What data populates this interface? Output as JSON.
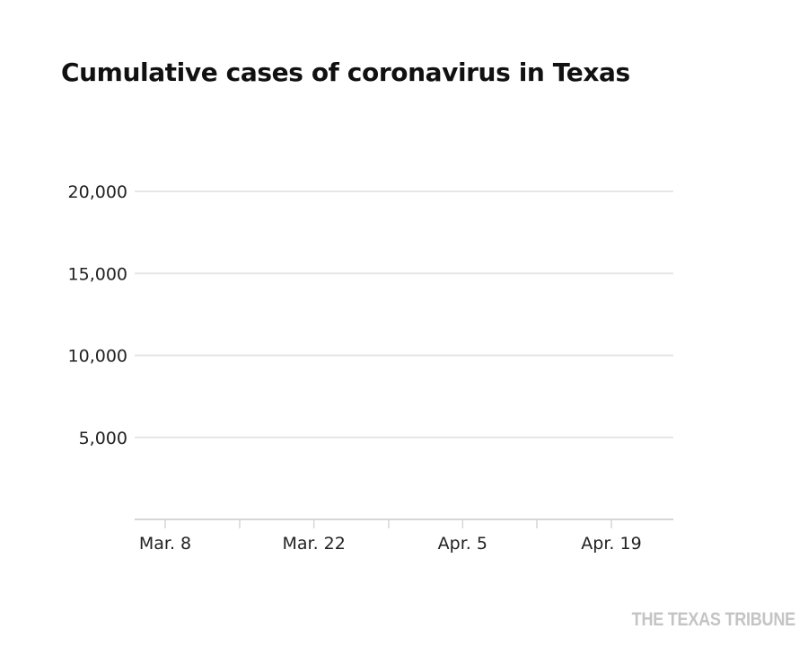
{
  "chart_data": {
    "type": "line",
    "title": "Cumulative cases of coronavirus in Texas",
    "xlabel": "",
    "ylabel": "",
    "x_ticks": [
      "Mar. 8",
      "Mar. 22",
      "Apr. 5",
      "Apr. 19"
    ],
    "y_ticks": [
      5000,
      10000,
      15000,
      20000
    ],
    "y_tick_labels": [
      "5,000",
      "10,000",
      "15,000",
      "20,000"
    ],
    "ylim": [
      0,
      20000
    ],
    "series": [],
    "grid": true,
    "legend": "none",
    "colors": {
      "gridline": "#e6e6e6",
      "axis": "#d6d6d6",
      "text": "#222222"
    }
  },
  "credit": "THE TEXAS TRIBUNE"
}
